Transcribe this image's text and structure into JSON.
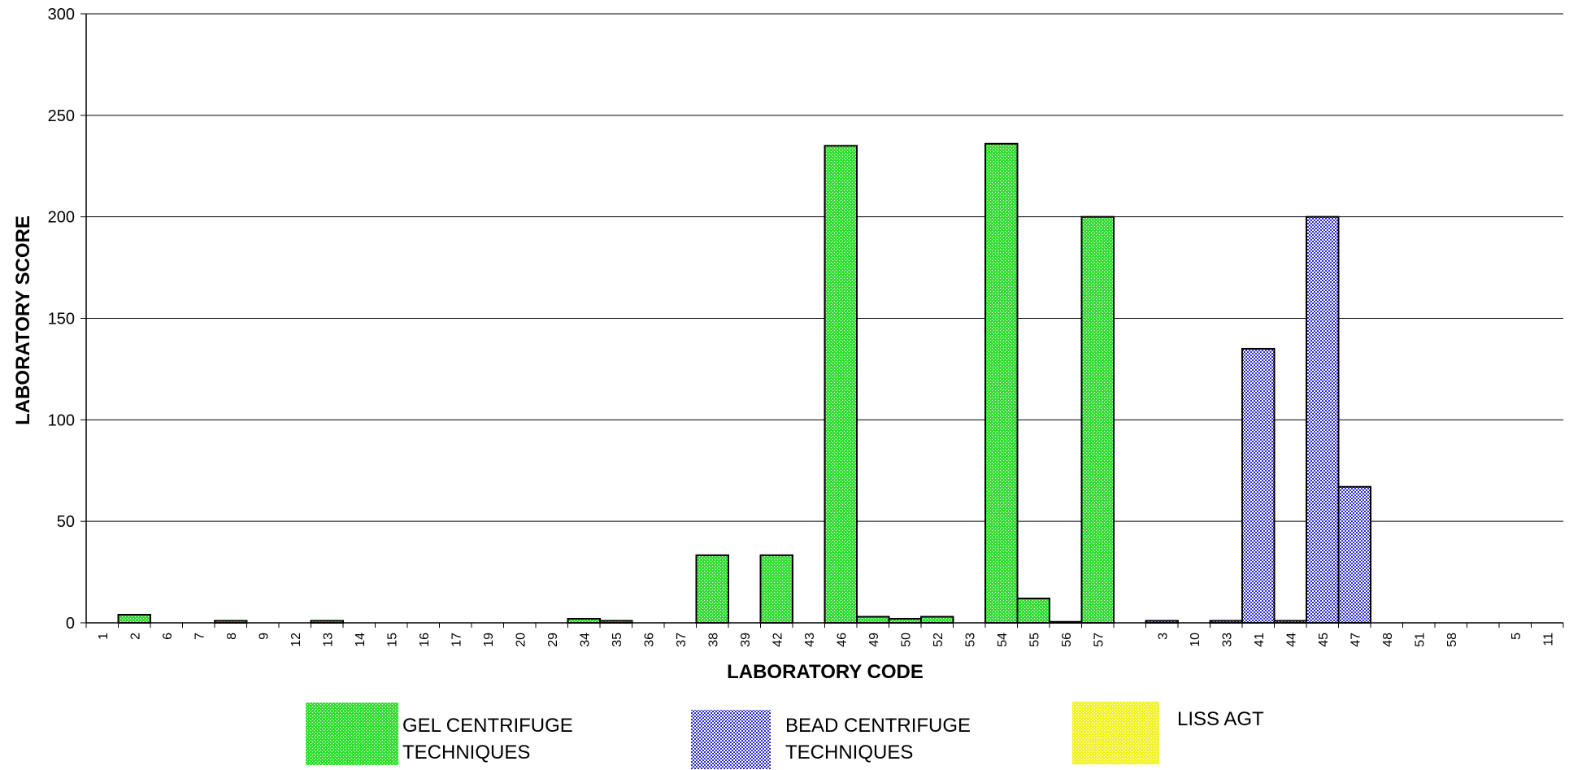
{
  "chart_data": {
    "type": "bar",
    "title": "",
    "xlabel": "LABORATORY CODE",
    "ylabel": "LABORATORY SCORE",
    "ylim": [
      0,
      300
    ],
    "yticks": [
      0,
      50,
      100,
      150,
      200,
      250,
      300
    ],
    "grid": true,
    "legend_position": "bottom",
    "categories": [
      "1",
      "2",
      "6",
      "7",
      "8",
      "9",
      "12",
      "13",
      "14",
      "15",
      "16",
      "17",
      "19",
      "20",
      "29",
      "34",
      "35",
      "36",
      "37",
      "38",
      "39",
      "42",
      "43",
      "46",
      "49",
      "50",
      "52",
      "53",
      "54",
      "55",
      "56",
      "57",
      "",
      "3",
      "10",
      "33",
      "41",
      "44",
      "45",
      "47",
      "48",
      "51",
      "58",
      "",
      "5",
      "11"
    ],
    "series": [
      {
        "name": "GEL CENTRIFUGE TECHNIQUES",
        "color": "#33dd33",
        "values": [
          0,
          4,
          0,
          0,
          1,
          0,
          0,
          1,
          0,
          0,
          0,
          0,
          0,
          0,
          0,
          2,
          1,
          0,
          0,
          33.3,
          0,
          33.3,
          0,
          235,
          3,
          2,
          3,
          0,
          236,
          12,
          0.5,
          200,
          0,
          0,
          0,
          0,
          0,
          0,
          0,
          0,
          0,
          0,
          0,
          0,
          0,
          0
        ]
      },
      {
        "name": "BEAD CENTRIFUGE TECHNIQUES",
        "color": "#2222cc",
        "values": [
          0,
          0,
          0,
          0,
          0,
          0,
          0,
          0,
          0,
          0,
          0,
          0,
          0,
          0,
          0,
          0,
          0,
          0,
          0,
          0,
          0,
          0,
          0,
          0,
          0,
          0,
          0,
          0,
          0,
          0,
          0,
          0,
          0,
          1,
          0,
          1,
          135,
          1,
          200,
          67,
          0,
          0,
          0,
          0,
          0,
          0
        ]
      },
      {
        "name": "LISS AGT",
        "color": "#eeee22",
        "values": [
          0,
          0,
          0,
          0,
          0,
          0,
          0,
          0,
          0,
          0,
          0,
          0,
          0,
          0,
          0,
          0,
          0,
          0,
          0,
          0,
          0,
          0,
          0,
          0,
          0,
          0,
          0,
          0,
          0,
          0,
          0,
          0,
          0,
          0,
          0,
          0,
          0,
          0,
          0,
          0,
          0,
          0,
          0,
          0,
          0,
          0
        ]
      }
    ],
    "legend": [
      {
        "line1": "GEL CENTRIFUGE",
        "line2": "TECHNIQUES"
      },
      {
        "line1": "BEAD CENTRIFUGE",
        "line2": "TECHNIQUES"
      },
      {
        "line1": "LISS AGT",
        "line2": ""
      }
    ]
  }
}
